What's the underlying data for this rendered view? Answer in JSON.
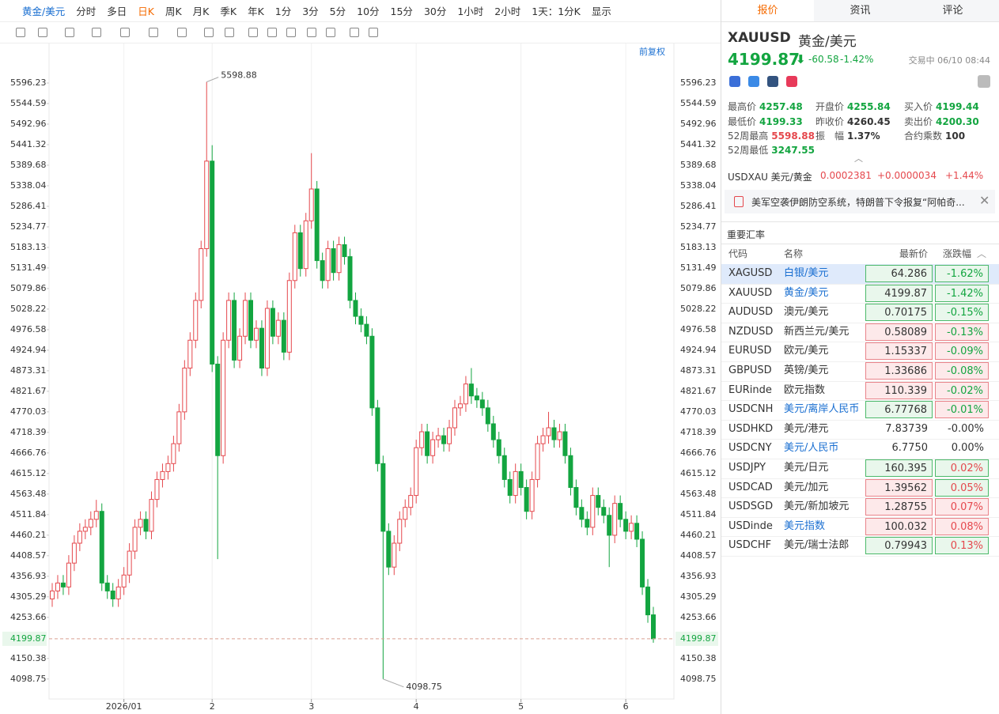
{
  "toolbar": {
    "items": [
      "黄金/美元",
      "分时",
      "多日",
      "日K",
      "周K",
      "月K",
      "季K",
      "年K",
      "1分",
      "3分",
      "5分",
      "10分",
      "15分",
      "30分",
      "1小时",
      "2小时",
      "1天：1分K",
      "显示"
    ],
    "active_index": 3
  },
  "chart_data": {
    "type": "candlestick",
    "adjust_label": "前复权",
    "up_color": "#e5484d",
    "down_color": "#13a540",
    "categories": [
      null,
      null,
      null,
      null,
      null,
      null,
      null,
      null,
      null,
      null,
      null,
      null,
      null,
      "2026/01",
      null,
      null,
      null,
      null,
      null,
      null,
      null,
      null,
      null,
      null,
      null,
      null,
      null,
      null,
      null,
      "2",
      null,
      null,
      null,
      null,
      null,
      null,
      null,
      null,
      null,
      null,
      null,
      null,
      null,
      null,
      null,
      null,
      null,
      "3",
      null,
      null,
      null,
      null,
      null,
      null,
      null,
      null,
      null,
      null,
      null,
      null,
      null,
      null,
      null,
      null,
      null,
      null,
      "4",
      null,
      null,
      null,
      null,
      null,
      null,
      null,
      null,
      null,
      null,
      null,
      null,
      null,
      null,
      null,
      null,
      null,
      null,
      "5",
      null,
      null,
      null,
      null,
      null,
      null,
      null,
      null,
      null,
      null,
      null,
      null,
      null,
      null,
      null,
      null,
      null,
      null,
      "6",
      null,
      null,
      null,
      null,
      null
    ],
    "open": [
      4300,
      4320,
      4340,
      4330,
      4390,
      4440,
      4470,
      4480,
      4500,
      4520,
      4340,
      4320,
      4300,
      4330,
      4360,
      4420,
      4480,
      4500,
      4470,
      4550,
      4600,
      4620,
      4640,
      4690,
      4770,
      4880,
      4950,
      5050,
      5180,
      5400,
      4890,
      4660,
      4950,
      5050,
      4900,
      4960,
      5050,
      4950,
      4980,
      4880,
      5030,
      4960,
      5000,
      4920,
      5100,
      5220,
      5130,
      5250,
      5330,
      5150,
      5100,
      5180,
      5120,
      5190,
      5160,
      5050,
      5010,
      4990,
      4960,
      4780,
      4640,
      4470,
      4380,
      4440,
      4500,
      4530,
      4560,
      4680,
      4720,
      4660,
      4700,
      4710,
      4690,
      4730,
      4780,
      4790,
      4840,
      4810,
      4800,
      4780,
      4740,
      4700,
      4660,
      4600,
      4560,
      4620,
      4580,
      4520,
      4600,
      4690,
      4710,
      4730,
      4700,
      4720,
      4660,
      4580,
      4530,
      4500,
      4480,
      4560,
      4530,
      4510,
      4460,
      4540,
      4500,
      4470,
      4490,
      4450,
      4330,
      4260
    ],
    "high": [
      4340,
      4360,
      4360,
      4410,
      4460,
      4490,
      4500,
      4520,
      4549,
      4540,
      4360,
      4340,
      4350,
      4380,
      4440,
      4500,
      4520,
      4520,
      4570,
      4620,
      4640,
      4660,
      4710,
      4790,
      4900,
      4970,
      5070,
      5200,
      5598.88,
      5440,
      4910,
      4970,
      5070,
      5070,
      4980,
      5070,
      5070,
      5000,
      5000,
      5050,
      5050,
      5020,
      5020,
      5120,
      5240,
      5240,
      5270,
      5420,
      5350,
      5170,
      5200,
      5200,
      5210,
      5210,
      5180,
      5070,
      5030,
      5010,
      4980,
      4800,
      4660,
      4490,
      4460,
      4520,
      4550,
      4580,
      4700,
      4740,
      4740,
      4720,
      4730,
      4730,
      4750,
      4800,
      4810,
      4860,
      4880,
      4830,
      4820,
      4800,
      4760,
      4720,
      4680,
      4620,
      4640,
      4640,
      4600,
      4620,
      4710,
      4730,
      4770,
      4750,
      4740,
      4740,
      4680,
      4600,
      4550,
      4520,
      4580,
      4580,
      4550,
      4530,
      4560,
      4560,
      4520,
      4510,
      4510,
      4470,
      4350,
      4280
    ],
    "low": [
      4280,
      4300,
      4310,
      4310,
      4370,
      4420,
      4450,
      4460,
      4480,
      4320,
      4300,
      4280,
      4280,
      4310,
      4340,
      4400,
      4460,
      4450,
      4450,
      4530,
      4580,
      4600,
      4620,
      4670,
      4750,
      4860,
      4930,
      5030,
      5160,
      4870,
      4400,
      4640,
      4930,
      4880,
      4880,
      4940,
      4930,
      4930,
      4860,
      4860,
      4940,
      4940,
      4900,
      4900,
      5080,
      5110,
      5110,
      5230,
      5130,
      5080,
      5080,
      5100,
      5100,
      5140,
      5030,
      4990,
      4970,
      4940,
      4760,
      4620,
      4098.75,
      4360,
      4360,
      4420,
      4480,
      4510,
      4540,
      4660,
      4640,
      4640,
      4680,
      4670,
      4670,
      4710,
      4760,
      4770,
      4790,
      4780,
      4760,
      4720,
      4680,
      4640,
      4580,
      4540,
      4540,
      4560,
      4500,
      4500,
      4580,
      4670,
      4690,
      4680,
      4680,
      4640,
      4560,
      4510,
      4480,
      4460,
      4460,
      4510,
      4490,
      4380,
      4440,
      4480,
      4450,
      4450,
      4430,
      4310,
      4240,
      4190
    ],
    "close": [
      4320,
      4340,
      4330,
      4390,
      4440,
      4470,
      4480,
      4500,
      4520,
      4340,
      4320,
      4300,
      4330,
      4360,
      4420,
      4480,
      4500,
      4470,
      4550,
      4600,
      4620,
      4640,
      4690,
      4770,
      4880,
      4950,
      5050,
      5180,
      5400,
      4890,
      4660,
      4950,
      5050,
      4900,
      4960,
      5050,
      4950,
      4980,
      4880,
      5030,
      4960,
      5000,
      4920,
      5100,
      5220,
      5130,
      5250,
      5330,
      5150,
      5100,
      5180,
      5120,
      5190,
      5160,
      5050,
      5010,
      4990,
      4960,
      4780,
      4640,
      4470,
      4380,
      4440,
      4500,
      4530,
      4560,
      4680,
      4720,
      4660,
      4700,
      4710,
      4690,
      4730,
      4780,
      4790,
      4840,
      4810,
      4800,
      4780,
      4740,
      4700,
      4660,
      4600,
      4560,
      4620,
      4580,
      4520,
      4600,
      4690,
      4710,
      4730,
      4700,
      4720,
      4660,
      4580,
      4530,
      4500,
      4480,
      4560,
      4530,
      4510,
      4460,
      4540,
      4500,
      4470,
      4490,
      4450,
      4330,
      4260,
      4199.87
    ],
    "ylim": [
      4048.6,
      5655.8
    ],
    "yticks": [
      4098.75,
      4150.38,
      4253.66,
      4305.29,
      4356.93,
      4408.57,
      4460.21,
      4511.84,
      4563.48,
      4615.12,
      4666.76,
      4718.39,
      4770.03,
      4821.67,
      4873.31,
      4924.94,
      4976.58,
      5028.22,
      5079.86,
      5131.49,
      5183.13,
      5234.77,
      5286.41,
      5338.04,
      5389.68,
      5441.32,
      5492.96,
      5544.59,
      5596.23
    ]
  },
  "quote": {
    "tabs": [
      "报价",
      "资讯",
      "评论"
    ],
    "symbol": "XAUUSD",
    "name": "黄金/美元",
    "price": "4199.87",
    "change": "-60.58",
    "change_pct": "-1.42%",
    "status": "交易中 06/10 08:44",
    "stats": [
      {
        "label": "最高价",
        "value": "4257.48",
        "color": "#13a540"
      },
      {
        "label": "开盘价",
        "value": "4255.84",
        "color": "#13a540"
      },
      {
        "label": "买入价",
        "value": "4199.44",
        "color": "#13a540"
      },
      {
        "label": "最低价",
        "value": "4199.33",
        "color": "#13a540"
      },
      {
        "label": "昨收价",
        "value": "4260.45",
        "color": "#333333"
      },
      {
        "label": "卖出价",
        "value": "4200.30",
        "color": "#13a540"
      },
      {
        "label": "52周最高",
        "value": "5598.88",
        "color": "#e5484d"
      },
      {
        "label": "振　幅",
        "value": "1.37%",
        "color": "#333333"
      },
      {
        "label": "合约乘数",
        "value": "100",
        "color": "#333333"
      },
      {
        "label": "52周最低",
        "value": "3247.55",
        "color": "#13a540"
      }
    ],
    "inverse": {
      "name": "USDXAU 美元/黄金",
      "price": "0.0002381",
      "change": "+0.0000034",
      "change_pct": "+1.44%"
    },
    "news": "美军空袭伊朗防空系统，特朗普下令报复“阿帕奇..."
  },
  "rates": {
    "title": "重要汇率",
    "columns": [
      "代码",
      "名称",
      "最新价",
      "涨跌幅"
    ],
    "selected_index": 0,
    "rows": [
      {
        "code": "XAGUSD",
        "name": "白银/美元",
        "price": "64.286",
        "change": "-1.62%",
        "price_bg": "green",
        "change_bg": "green",
        "link": true
      },
      {
        "code": "XAUUSD",
        "name": "黄金/美元",
        "price": "4199.87",
        "change": "-1.42%",
        "price_bg": "green",
        "change_bg": "green",
        "link": true
      },
      {
        "code": "AUDUSD",
        "name": "澳元/美元",
        "price": "0.70175",
        "change": "-0.15%",
        "price_bg": "green",
        "change_bg": "green",
        "link": false
      },
      {
        "code": "NZDUSD",
        "name": "新西兰元/美元",
        "price": "0.58089",
        "change": "-0.13%",
        "price_bg": "red",
        "change_bg": "red",
        "link": false
      },
      {
        "code": "EURUSD",
        "name": "欧元/美元",
        "price": "1.15337",
        "change": "-0.09%",
        "price_bg": "red",
        "change_bg": "red",
        "link": false
      },
      {
        "code": "GBPUSD",
        "name": "英镑/美元",
        "price": "1.33686",
        "change": "-0.08%",
        "price_bg": "red",
        "change_bg": "red",
        "link": false
      },
      {
        "code": "EURinde",
        "name": "欧元指数",
        "price": "110.339",
        "change": "-0.02%",
        "price_bg": "red",
        "change_bg": "red",
        "link": false
      },
      {
        "code": "USDCNH",
        "name": "美元/离岸人民币",
        "price": "6.77768",
        "change": "-0.01%",
        "price_bg": "green",
        "change_bg": "red",
        "link": true
      },
      {
        "code": "USDHKD",
        "name": "美元/港元",
        "price": "7.83739",
        "change": "-0.00%",
        "price_bg": "none",
        "change_bg": "none",
        "link": false
      },
      {
        "code": "USDCNY",
        "name": "美元/人民币",
        "price": "6.7750",
        "change": "0.00%",
        "price_bg": "none",
        "change_bg": "none",
        "link": true
      },
      {
        "code": "USDJPY",
        "name": "美元/日元",
        "price": "160.395",
        "change": "0.02%",
        "price_bg": "green",
        "change_bg": "green",
        "link": false
      },
      {
        "code": "USDCAD",
        "name": "美元/加元",
        "price": "1.39562",
        "change": "0.05%",
        "price_bg": "red",
        "change_bg": "green",
        "link": false
      },
      {
        "code": "USDSGD",
        "name": "美元/新加坡元",
        "price": "1.28755",
        "change": "0.07%",
        "price_bg": "red",
        "change_bg": "red",
        "link": false
      },
      {
        "code": "USDinde",
        "name": "美元指数",
        "price": "100.032",
        "change": "0.08%",
        "price_bg": "red",
        "change_bg": "red",
        "link": true
      },
      {
        "code": "USDCHF",
        "name": "美元/瑞士法郎",
        "price": "0.79943",
        "change": "0.13%",
        "price_bg": "green",
        "change_bg": "green",
        "link": false
      }
    ]
  }
}
